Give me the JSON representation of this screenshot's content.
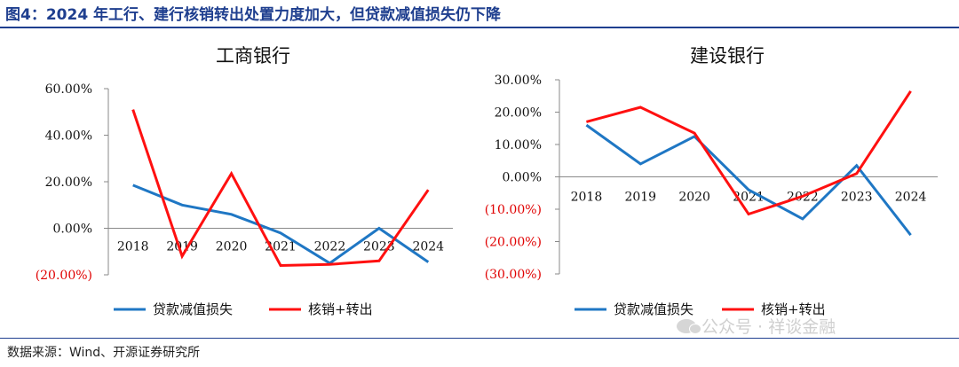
{
  "figure_title": "图4：2024 年工行、建行核销转出处置力度加大，但贷款减值损失仍下降",
  "source": "数据来源：Wind、开源证券研究所",
  "watermark": "公众号 · 祥谈金融",
  "colors": {
    "series_a": "#1f77c4",
    "series_b": "#ff1010",
    "negative_label": "#e00000",
    "title_blue": "#1f3f8f"
  },
  "chart_data": [
    {
      "type": "line",
      "title": "工商银行",
      "categories": [
        "2018",
        "2019",
        "2020",
        "2021",
        "2022",
        "2023",
        "2024"
      ],
      "ylim": [
        -20,
        60
      ],
      "yticks": [
        60,
        40,
        20,
        0,
        -20
      ],
      "ytick_labels": [
        "60.00%",
        "40.00%",
        "20.00%",
        "0.00%",
        "(20.00%)"
      ],
      "legend": "bottom",
      "series": [
        {
          "name": "贷款减值损失",
          "values": [
            18.5,
            10,
            6,
            -2,
            -15,
            0,
            -14.5
          ]
        },
        {
          "name": "核销+转出",
          "values": [
            51,
            -12,
            23.5,
            -16,
            -15.5,
            -14,
            16.5
          ]
        }
      ]
    },
    {
      "type": "line",
      "title": "建设银行",
      "categories": [
        "2018",
        "2019",
        "2020",
        "2021",
        "2022",
        "2023",
        "2024"
      ],
      "ylim": [
        -30,
        30
      ],
      "yticks": [
        30,
        20,
        10,
        0,
        -10,
        -20,
        -30
      ],
      "ytick_labels": [
        "30.00%",
        "20.00%",
        "10.00%",
        "0.00%",
        "(10.00%)",
        "(20.00%)",
        "(30.00%)"
      ],
      "legend": "bottom",
      "series": [
        {
          "name": "贷款减值损失",
          "values": [
            16,
            4,
            12.5,
            -4,
            -13,
            3.5,
            -18
          ]
        },
        {
          "name": "核销+转出",
          "values": [
            17,
            21.5,
            13.5,
            -11.5,
            -6,
            1,
            26.5
          ]
        }
      ]
    }
  ]
}
